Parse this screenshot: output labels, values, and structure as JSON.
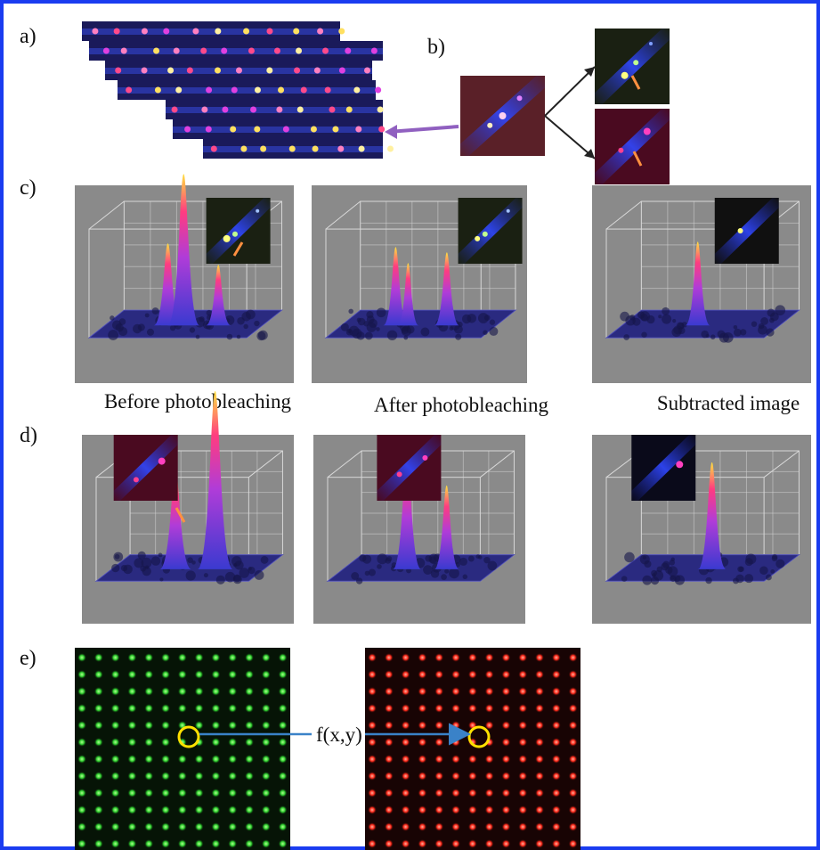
{
  "panels": {
    "a": "a)",
    "b": "b)",
    "c": "c)",
    "d": "d)",
    "e": "e)"
  },
  "captions": [
    "Before photobleaching",
    "After photobleaching",
    "Subtracted image"
  ],
  "mapping_label": "f(x,y)"
}
